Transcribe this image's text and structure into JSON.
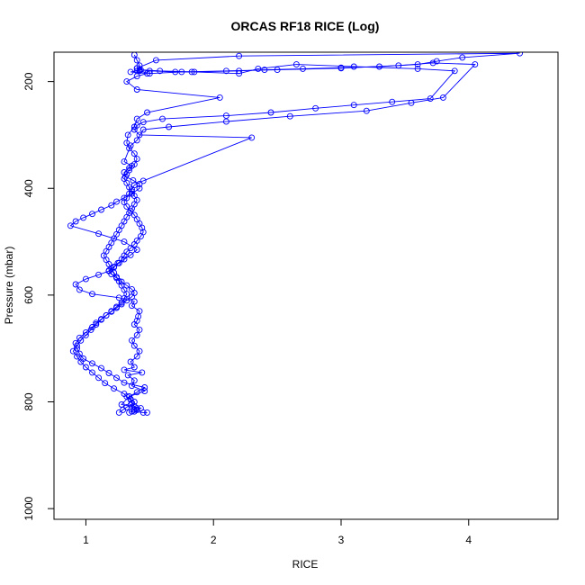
{
  "chart_data": {
    "type": "line",
    "title": "ORCAS RF18 RICE (Log)",
    "xlabel": "RICE",
    "ylabel": "Pressure (mbar)",
    "xlim": [
      0.75,
      4.7
    ],
    "ylim": [
      1020,
      145
    ],
    "x_ticks": [
      1,
      2,
      3,
      4
    ],
    "y_ticks": [
      200,
      400,
      600,
      800,
      1000
    ],
    "grid": false,
    "legend": "none",
    "series_color": "#0000ff",
    "series": [
      {
        "x": [
          1.48,
          1.45,
          1.38,
          1.4,
          1.43,
          1.28,
          1.34,
          1.46,
          1.36,
          1.38,
          1.33,
          1.44,
          1.3,
          1.38,
          1.35,
          1.4,
          1.42,
          1.38,
          1.36,
          1.4,
          1.42,
          1.38,
          1.4,
          1.41,
          1.42,
          1.36,
          1.38,
          1.26,
          1.05,
          0.95,
          0.92,
          1.0,
          1.1,
          1.18,
          1.22,
          1.25,
          1.3,
          1.35,
          1.4,
          1.3,
          1.1,
          0.88,
          0.92,
          0.98,
          1.05,
          1.12,
          1.2,
          1.24,
          1.3,
          1.36,
          1.42,
          1.42,
          1.37,
          1.31,
          1.3,
          1.34,
          1.38,
          1.4,
          1.38,
          1.34,
          1.32,
          1.33,
          1.38,
          1.4,
          1.48,
          2.05,
          1.4,
          1.32,
          1.4,
          1.48,
          1.35,
          1.4,
          1.42,
          1.5,
          1.7,
          1.83,
          2.2,
          2.4,
          2.7,
          3.0,
          3.3,
          3.6,
          3.75,
          3.95,
          4.4,
          2.2,
          1.55,
          1.4
        ],
        "y": [
          820,
          820,
          818,
          815,
          812,
          805,
          790,
          780,
          770,
          760,
          750,
          745,
          740,
          735,
          725,
          715,
          705,
          695,
          685,
          675,
          665,
          655,
          648,
          640,
          630,
          620,
          612,
          605,
          598,
          590,
          580,
          570,
          562,
          555,
          548,
          540,
          533,
          525,
          515,
          500,
          485,
          470,
          462,
          455,
          448,
          440,
          432,
          425,
          418,
          410,
          400,
          392,
          385,
          378,
          370,
          362,
          355,
          345,
          335,
          325,
          315,
          300,
          285,
          270,
          258,
          230,
          215,
          200,
          190,
          185,
          182,
          180,
          178,
          180,
          182,
          182,
          180,
          178,
          176,
          174,
          172,
          168,
          162,
          155,
          147,
          152,
          160,
          175
        ]
      },
      {
        "x": [
          1.34,
          1.36,
          1.38,
          1.4,
          1.38,
          1.36,
          1.35,
          1.34,
          1.4,
          1.46,
          1.3,
          1.24,
          1.18,
          1.12,
          1.05,
          0.98,
          0.95,
          0.93,
          0.92,
          0.95,
          1.0,
          1.05,
          1.08,
          1.12,
          1.16,
          1.2,
          1.24,
          1.28,
          1.32,
          1.36,
          1.38,
          1.36,
          1.32,
          1.28,
          1.24,
          1.2,
          1.18,
          1.22,
          1.26,
          1.28,
          1.3,
          1.32,
          1.35,
          1.38,
          1.4,
          1.43,
          1.45,
          1.44,
          1.42,
          1.4,
          1.38,
          1.35,
          1.32,
          1.3,
          1.32,
          1.34,
          1.36,
          1.38,
          1.45,
          2.3,
          1.42,
          1.38,
          1.4,
          1.45,
          1.6,
          2.1,
          2.45,
          2.8,
          3.1,
          3.4,
          3.7,
          3.89,
          3.6,
          3.1,
          2.65,
          2.35,
          2.2,
          1.85,
          1.58,
          1.43,
          1.42,
          1.4,
          1.38
        ],
        "y": [
          820,
          818,
          815,
          812,
          808,
          802,
          796,
          790,
          782,
          773,
          764,
          755,
          746,
          737,
          728,
          719,
          710,
          700,
          690,
          680,
          670,
          660,
          652,
          645,
          638,
          631,
          624,
          617,
          610,
          603,
          596,
          589,
          582,
          575,
          568,
          561,
          554,
          547,
          540,
          533,
          526,
          519,
          512,
          505,
          498,
          490,
          482,
          474,
          466,
          458,
          450,
          442,
          434,
          426,
          418,
          410,
          402,
          394,
          386,
          305,
          300,
          290,
          282,
          276,
          270,
          264,
          258,
          250,
          244,
          238,
          232,
          180,
          176,
          172,
          168,
          176,
          185,
          182,
          180,
          178,
          170,
          160,
          150
        ]
      },
      {
        "x": [
          1.26,
          1.29,
          1.32,
          1.35,
          1.38,
          1.35,
          1.32,
          1.3,
          1.22,
          1.15,
          1.1,
          1.05,
          1.0,
          0.96,
          0.93,
          0.9,
          0.93,
          0.96,
          1.0,
          1.04,
          1.08,
          1.12,
          1.16,
          1.2,
          1.24,
          1.28,
          1.3,
          1.32,
          1.3,
          1.28,
          1.26,
          1.24,
          1.22,
          1.2,
          1.18,
          1.16,
          1.14,
          1.16,
          1.18,
          1.2,
          1.22,
          1.24,
          1.26,
          1.28,
          1.3,
          1.32,
          1.34,
          1.36,
          1.38,
          1.4,
          1.38,
          1.36,
          1.34,
          1.32,
          1.3,
          1.32,
          1.34,
          1.36,
          1.3,
          1.35,
          1.4,
          1.45,
          1.65,
          2.1,
          2.6,
          3.2,
          3.55,
          3.8,
          4.05,
          3.72,
          3.45,
          3.0,
          2.5,
          2.1,
          1.75,
          1.5,
          1.42,
          1.4
        ],
        "y": [
          820,
          815,
          810,
          806,
          800,
          795,
          790,
          785,
          775,
          765,
          755,
          745,
          735,
          725,
          715,
          705,
          695,
          685,
          675,
          665,
          655,
          646,
          638,
          630,
          622,
          614,
          606,
          598,
          590,
          582,
          574,
          566,
          558,
          550,
          542,
          534,
          526,
          518,
          510,
          502,
          494,
          486,
          478,
          470,
          462,
          454,
          446,
          438,
          430,
          422,
          414,
          406,
          398,
          390,
          382,
          374,
          366,
          358,
          350,
          320,
          310,
          290,
          285,
          275,
          265,
          255,
          240,
          230,
          168,
          165,
          170,
          175,
          178,
          180,
          182,
          185,
          180,
          175
        ]
      }
    ]
  }
}
